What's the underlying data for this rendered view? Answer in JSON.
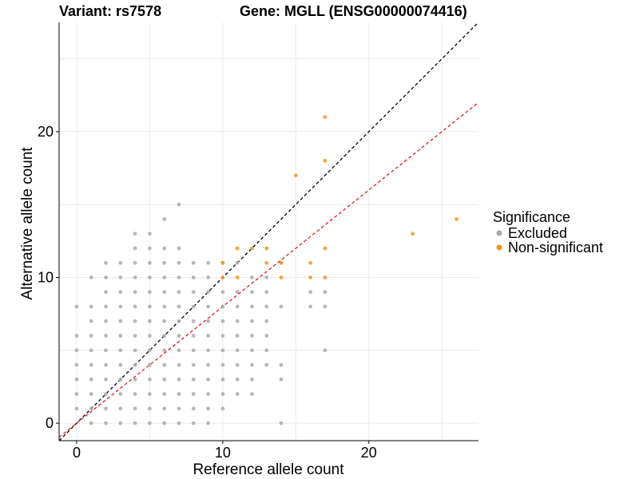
{
  "chart_data": {
    "type": "scatter",
    "title_left": "Variant: rs7578",
    "title_right": "Gene: MGLL (ENSG00000074416)",
    "xlabel": "Reference allele count",
    "ylabel": "Alternative allele count",
    "xlim": [
      -1.2,
      27.5
    ],
    "ylim": [
      -1.2,
      27.5
    ],
    "xticks": [
      0,
      10,
      20
    ],
    "yticks": [
      0,
      10,
      20
    ],
    "xtick_labels": [
      "0",
      "10",
      "20"
    ],
    "ytick_labels": [
      "0",
      "10",
      "20"
    ],
    "grid": true,
    "reference_lines": [
      {
        "name": "identity",
        "slope": 1,
        "intercept": 0,
        "color": "#000000",
        "style": "dashed"
      },
      {
        "name": "fit",
        "slope": 0.8,
        "intercept": 0,
        "color": "#e41a1c",
        "style": "dashed"
      }
    ],
    "legend": {
      "title": "Significance",
      "position": "right",
      "entries": [
        {
          "label": "Excluded",
          "color": "#aaaaaa"
        },
        {
          "label": "Non-significant",
          "color": "#f7941d"
        }
      ]
    },
    "series": [
      {
        "name": "Excluded",
        "color": "#aaaaaa",
        "points": [
          [
            0,
            1
          ],
          [
            0,
            2
          ],
          [
            0,
            3
          ],
          [
            0,
            4
          ],
          [
            0,
            5
          ],
          [
            0,
            6
          ],
          [
            0,
            8
          ],
          [
            1,
            0
          ],
          [
            1,
            1
          ],
          [
            1,
            2
          ],
          [
            1,
            3
          ],
          [
            1,
            4
          ],
          [
            1,
            5
          ],
          [
            1,
            6
          ],
          [
            1,
            7
          ],
          [
            1,
            8
          ],
          [
            1,
            10
          ],
          [
            2,
            0
          ],
          [
            2,
            1
          ],
          [
            2,
            2
          ],
          [
            2,
            3
          ],
          [
            2,
            4
          ],
          [
            2,
            5
          ],
          [
            2,
            6
          ],
          [
            2,
            7
          ],
          [
            2,
            8
          ],
          [
            2,
            9
          ],
          [
            2,
            10
          ],
          [
            2,
            11
          ],
          [
            3,
            0
          ],
          [
            3,
            1
          ],
          [
            3,
            2
          ],
          [
            3,
            3
          ],
          [
            3,
            4
          ],
          [
            3,
            5
          ],
          [
            3,
            6
          ],
          [
            3,
            7
          ],
          [
            3,
            8
          ],
          [
            3,
            9
          ],
          [
            3,
            10
          ],
          [
            3,
            11
          ],
          [
            4,
            0
          ],
          [
            4,
            1
          ],
          [
            4,
            2
          ],
          [
            4,
            3
          ],
          [
            4,
            4
          ],
          [
            4,
            5
          ],
          [
            4,
            6
          ],
          [
            4,
            7
          ],
          [
            4,
            8
          ],
          [
            4,
            9
          ],
          [
            4,
            10
          ],
          [
            4,
            11
          ],
          [
            4,
            12
          ],
          [
            4,
            13
          ],
          [
            5,
            0
          ],
          [
            5,
            1
          ],
          [
            5,
            2
          ],
          [
            5,
            3
          ],
          [
            5,
            4
          ],
          [
            5,
            5
          ],
          [
            5,
            6
          ],
          [
            5,
            7
          ],
          [
            5,
            8
          ],
          [
            5,
            9
          ],
          [
            5,
            10
          ],
          [
            5,
            11
          ],
          [
            5,
            12
          ],
          [
            5,
            13
          ],
          [
            6,
            0
          ],
          [
            6,
            1
          ],
          [
            6,
            2
          ],
          [
            6,
            3
          ],
          [
            6,
            4
          ],
          [
            6,
            5
          ],
          [
            6,
            6
          ],
          [
            6,
            7
          ],
          [
            6,
            8
          ],
          [
            6,
            9
          ],
          [
            6,
            10
          ],
          [
            6,
            11
          ],
          [
            6,
            12
          ],
          [
            6,
            14
          ],
          [
            7,
            0
          ],
          [
            7,
            1
          ],
          [
            7,
            2
          ],
          [
            7,
            3
          ],
          [
            7,
            4
          ],
          [
            7,
            5
          ],
          [
            7,
            6
          ],
          [
            7,
            7
          ],
          [
            7,
            8
          ],
          [
            7,
            9
          ],
          [
            7,
            10
          ],
          [
            7,
            11
          ],
          [
            7,
            12
          ],
          [
            7,
            15
          ],
          [
            8,
            0
          ],
          [
            8,
            1
          ],
          [
            8,
            2
          ],
          [
            8,
            3
          ],
          [
            8,
            4
          ],
          [
            8,
            5
          ],
          [
            8,
            6
          ],
          [
            8,
            7
          ],
          [
            8,
            8
          ],
          [
            8,
            9
          ],
          [
            8,
            10
          ],
          [
            8,
            11
          ],
          [
            9,
            0
          ],
          [
            9,
            1
          ],
          [
            9,
            2
          ],
          [
            9,
            3
          ],
          [
            9,
            4
          ],
          [
            9,
            5
          ],
          [
            9,
            6
          ],
          [
            9,
            7
          ],
          [
            9,
            8
          ],
          [
            9,
            9
          ],
          [
            9,
            10
          ],
          [
            9,
            11
          ],
          [
            10,
            1
          ],
          [
            10,
            2
          ],
          [
            10,
            3
          ],
          [
            10,
            4
          ],
          [
            10,
            5
          ],
          [
            10,
            6
          ],
          [
            10,
            7
          ],
          [
            10,
            8
          ],
          [
            10,
            9
          ],
          [
            10,
            11
          ],
          [
            11,
            2
          ],
          [
            11,
            3
          ],
          [
            11,
            4
          ],
          [
            11,
            5
          ],
          [
            11,
            6
          ],
          [
            11,
            7
          ],
          [
            11,
            8
          ],
          [
            11,
            9
          ],
          [
            11,
            11
          ],
          [
            12,
            2
          ],
          [
            12,
            3
          ],
          [
            12,
            4
          ],
          [
            12,
            5
          ],
          [
            12,
            6
          ],
          [
            12,
            7
          ],
          [
            12,
            8
          ],
          [
            12,
            9
          ],
          [
            12,
            10
          ],
          [
            13,
            4
          ],
          [
            13,
            5
          ],
          [
            13,
            6
          ],
          [
            13,
            7
          ],
          [
            13,
            8
          ],
          [
            13,
            9
          ],
          [
            13,
            10
          ],
          [
            14,
            0
          ],
          [
            14,
            3
          ],
          [
            14,
            4
          ],
          [
            14,
            8
          ],
          [
            14,
            11
          ],
          [
            16,
            8
          ],
          [
            16,
            9
          ],
          [
            17,
            5
          ],
          [
            17,
            8
          ],
          [
            17,
            9
          ]
        ]
      },
      {
        "name": "Non-significant",
        "color": "#f7941d",
        "points": [
          [
            10,
            10
          ],
          [
            10,
            11
          ],
          [
            11,
            10
          ],
          [
            11,
            12
          ],
          [
            12,
            12
          ],
          [
            13,
            11
          ],
          [
            13,
            12
          ],
          [
            14,
            10
          ],
          [
            14,
            11
          ],
          [
            15,
            17
          ],
          [
            16,
            10
          ],
          [
            16,
            11
          ],
          [
            17,
            10
          ],
          [
            17,
            12
          ],
          [
            17,
            18
          ],
          [
            17,
            21
          ],
          [
            23,
            13
          ],
          [
            26,
            14
          ]
        ]
      }
    ]
  }
}
